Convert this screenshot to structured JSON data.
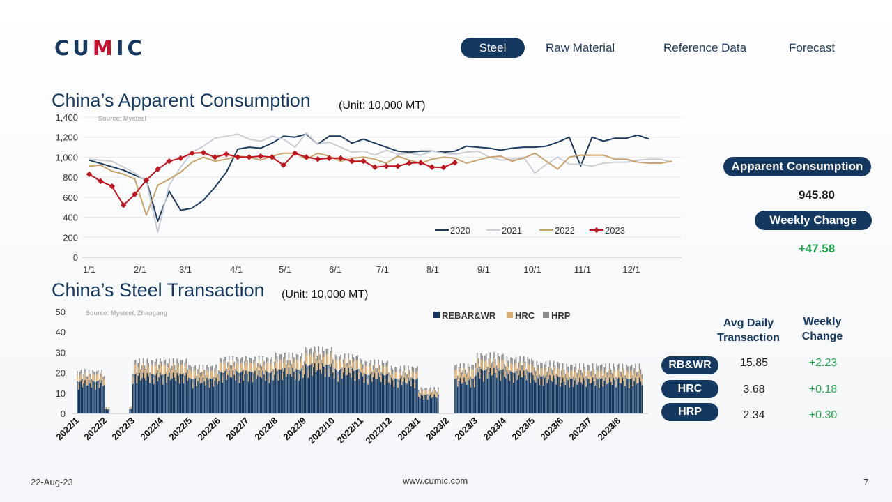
{
  "header": {
    "logo_pre": "CU",
    "logo_mid": "M",
    "logo_post": "IC",
    "nav": [
      "Steel",
      "Raw Material",
      "Reference Data",
      "Forecast"
    ],
    "active_nav": "Steel"
  },
  "top": {
    "title": "China’s Apparent Consumption",
    "unit": "(Unit: 10,000 MT)",
    "source": "Source: Mysteel"
  },
  "bottom": {
    "title": "China’s Steel Transaction",
    "unit": "(Unit: 10,000 MT)",
    "source": "Source: Mysteel, Zhaogang"
  },
  "side": {
    "ac_label": "Apparent Consumption",
    "ac_value": "945.80",
    "wc_label": "Weekly Change",
    "wc_value": "+47.58"
  },
  "table": {
    "col1": "Avg Daily Transaction",
    "col2": "Weekly Change",
    "rows": [
      {
        "name": "RB&WR",
        "avg": "15.85",
        "change": "+2.23"
      },
      {
        "name": "HRC",
        "avg": "3.68",
        "change": "+0.18"
      },
      {
        "name": "HRP",
        "avg": "2.34",
        "change": "+0.30"
      }
    ]
  },
  "footer": {
    "date": "22-Aug-23",
    "site": "www.cumic.com",
    "page": "7"
  },
  "colors": {
    "navy": "#14385f",
    "s2020": "#1b3a5e",
    "s2021": "#c9ced6",
    "s2022": "#c9a36b",
    "s2023": "#c0161d",
    "rebar": "#14385f",
    "hrc": "#d7ad72",
    "hrp": "#8c8c8c",
    "positive": "#1fa34a"
  },
  "chart_data": [
    {
      "type": "line",
      "y_ticks": [
        0,
        200,
        400,
        600,
        800,
        1000,
        1200,
        1400
      ],
      "ylim": [
        0,
        1400
      ],
      "x_tick_labels": [
        "1/1",
        "2/1",
        "3/1",
        "4/1",
        "5/1",
        "6/1",
        "7/1",
        "8/1",
        "9/1",
        "10/1",
        "11/1",
        "12/1"
      ],
      "x_range_weeks": [
        1,
        52
      ],
      "grid": true,
      "legend_position": "bottom-right",
      "series": [
        {
          "name": "2020",
          "marker": false,
          "x": [
            1,
            4,
            6,
            7,
            8,
            9,
            10,
            11,
            12,
            13,
            14,
            15,
            16,
            17,
            18,
            19,
            20,
            21,
            22,
            23,
            24,
            25,
            26,
            27,
            28,
            29,
            30,
            31,
            32,
            33,
            34,
            35,
            36,
            37,
            38,
            39,
            40,
            41,
            42,
            43,
            44,
            45,
            46,
            47,
            48,
            49,
            50
          ],
          "y": [
            970,
            870,
            770,
            360,
            660,
            470,
            490,
            570,
            700,
            850,
            1080,
            1100,
            1090,
            1140,
            1210,
            1200,
            1230,
            1130,
            1210,
            1210,
            1140,
            1180,
            1140,
            1100,
            1060,
            1050,
            1060,
            1060,
            1050,
            1060,
            1110,
            1100,
            1090,
            1070,
            1090,
            1100,
            1100,
            1110,
            1150,
            1200,
            910,
            1200,
            1160,
            1190,
            1190,
            1220,
            1180
          ]
        },
        {
          "name": "2021",
          "marker": false,
          "x": [
            1,
            3,
            4,
            5,
            6,
            7,
            8,
            9,
            10,
            11,
            12,
            13,
            14,
            15,
            16,
            17,
            18,
            19,
            20,
            21,
            22,
            23,
            24,
            25,
            26,
            27,
            28,
            29,
            30,
            31,
            32,
            33,
            34,
            35,
            36,
            37,
            38,
            39,
            40,
            41,
            42,
            43,
            44,
            45,
            46,
            47,
            48,
            49,
            50,
            51,
            52
          ],
          "y": [
            980,
            960,
            900,
            840,
            760,
            250,
            720,
            900,
            1050,
            1110,
            1190,
            1210,
            1230,
            1180,
            1160,
            1210,
            1180,
            1100,
            1240,
            1130,
            1150,
            1100,
            1050,
            1060,
            1020,
            1070,
            1030,
            1040,
            1020,
            1060,
            1040,
            1030,
            1050,
            1060,
            1000,
            970,
            980,
            1000,
            840,
            930,
            1000,
            930,
            930,
            910,
            940,
            950,
            950,
            970,
            980,
            980,
            950
          ]
        },
        {
          "name": "2022",
          "marker": false,
          "x": [
            1,
            2,
            3,
            4,
            5,
            6,
            7,
            8,
            9,
            10,
            11,
            12,
            13,
            14,
            15,
            16,
            17,
            18,
            19,
            20,
            21,
            22,
            23,
            24,
            25,
            26,
            27,
            28,
            29,
            30,
            31,
            32,
            33,
            34,
            35,
            36,
            37,
            38,
            39,
            40,
            41,
            42,
            43,
            44,
            45,
            46,
            47,
            48,
            49,
            50,
            51,
            52
          ],
          "y": [
            910,
            920,
            860,
            830,
            780,
            420,
            720,
            780,
            850,
            950,
            1000,
            960,
            980,
            1010,
            1000,
            970,
            1010,
            1040,
            1040,
            980,
            1040,
            1010,
            960,
            990,
            1000,
            980,
            940,
            1010,
            970,
            940,
            980,
            1000,
            990,
            940,
            970,
            1000,
            1010,
            960,
            990,
            1040,
            960,
            880,
            1000,
            1020,
            1020,
            1020,
            980,
            980,
            950,
            940,
            940,
            960
          ]
        },
        {
          "name": "2023",
          "marker": true,
          "x": [
            1,
            2,
            3,
            4,
            5,
            6,
            7,
            8,
            9,
            10,
            11,
            12,
            13,
            14,
            15,
            16,
            17,
            18,
            19,
            20,
            21,
            22,
            23,
            24,
            25,
            26,
            27,
            28,
            29,
            30,
            31,
            32,
            33
          ],
          "y": [
            830,
            760,
            710,
            520,
            630,
            770,
            880,
            960,
            990,
            1040,
            1045,
            1000,
            1030,
            1000,
            1000,
            1010,
            1000,
            920,
            1040,
            1000,
            980,
            990,
            990,
            960,
            960,
            900,
            910,
            910,
            940,
            945,
            900,
            898,
            945.8
          ]
        }
      ]
    },
    {
      "type": "bar",
      "stacked": true,
      "y_ticks": [
        0,
        10,
        20,
        30,
        40,
        50
      ],
      "ylim": [
        0,
        50
      ],
      "x_tick_labels": [
        "2022/1",
        "2022/2",
        "2022/3",
        "2022/4",
        "2022/5",
        "2022/6",
        "2022/7",
        "2022/8",
        "2022/9",
        "2022/10",
        "2022/11",
        "2022/12",
        "2023/1",
        "2023/2",
        "2023/3",
        "2023/4",
        "2023/5",
        "2023/6",
        "2023/7",
        "2023/8"
      ],
      "legend_position": "top",
      "series": [
        {
          "name": "REBAR&WR",
          "monthly_avg": [
            14,
            2,
            17,
            17,
            15,
            18,
            18,
            19,
            21,
            19,
            17,
            15,
            8,
            15,
            19,
            18,
            16,
            15,
            15,
            15
          ]
        },
        {
          "name": "HRC",
          "monthly_avg": [
            3,
            0.5,
            4,
            4,
            3.5,
            4,
            4,
            4,
            4.5,
            4,
            3.5,
            3,
            2,
            4,
            4,
            3.5,
            3.5,
            3.5,
            3.5,
            3.5
          ]
        },
        {
          "name": "HRP",
          "monthly_avg": [
            1.5,
            0.3,
            2,
            2,
            2,
            2,
            2,
            2.5,
            2.5,
            2,
            2,
            2,
            1,
            2,
            2.5,
            2.5,
            2.5,
            2.5,
            2.5,
            2.3
          ]
        }
      ]
    }
  ]
}
